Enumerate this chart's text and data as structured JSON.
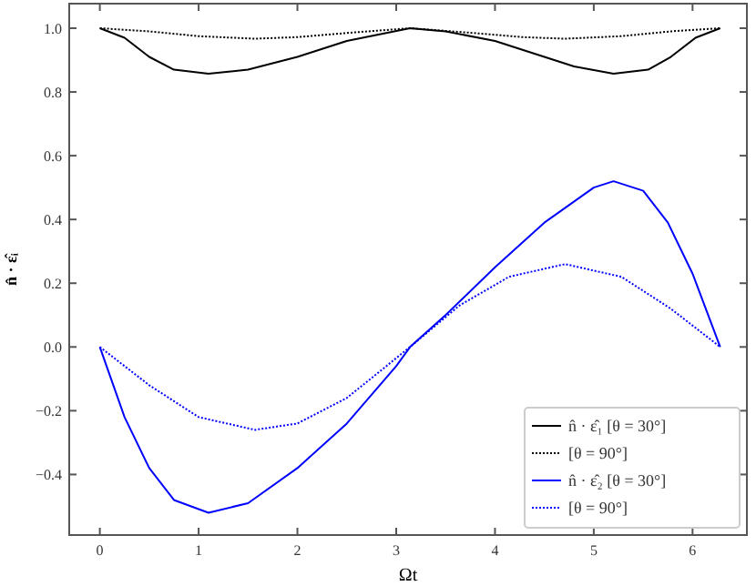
{
  "chart_data": {
    "type": "line",
    "xlabel": "Ωt",
    "ylabel": "n̂ · ε̂ᵢ",
    "xlim": [
      -0.31,
      6.55
    ],
    "ylim": [
      -0.59,
      1.077
    ],
    "xticks": [
      0,
      1,
      2,
      3,
      4,
      5,
      6
    ],
    "yticks": [
      {
        "value": -0.4,
        "label": "−0.4"
      },
      {
        "value": -0.2,
        "label": "−0.2"
      },
      {
        "value": 0,
        "label": "0.0"
      },
      0.2,
      0.4,
      0.6,
      0.8,
      {
        "value": 1,
        "label": "1.0"
      }
    ],
    "legend": "bottom right",
    "grid": false,
    "series": [
      {
        "name": "n̂ · ε̂₁ [θ = 30°]",
        "color": "#000000",
        "line_style": "solid",
        "x": [
          0,
          0.25,
          0.5,
          0.75,
          1.1,
          1.5,
          2,
          2.5,
          3.14,
          3.5,
          4,
          4.5,
          4.8,
          5.2,
          5.55,
          5.78,
          6.03,
          6.28
        ],
        "values": [
          1,
          0.97,
          0.91,
          0.87,
          0.857,
          0.87,
          0.91,
          0.96,
          1,
          0.99,
          0.96,
          0.91,
          0.88,
          0.857,
          0.87,
          0.91,
          0.97,
          1
        ]
      },
      {
        "name": "[θ = 90°]",
        "color": "#000000",
        "line_style": "dotted",
        "x": [
          0,
          0.5,
          1,
          1.57,
          2,
          2.5,
          3.14,
          3.78,
          4.28,
          4.71,
          5.28,
          5.78,
          6.28
        ],
        "values": [
          1,
          0.99,
          0.975,
          0.967,
          0.972,
          0.985,
          1,
          0.985,
          0.972,
          0.967,
          0.975,
          0.99,
          1
        ]
      },
      {
        "name": "n̂ · ε̂₂ [θ = 30°]",
        "color": "#0000ff",
        "line_style": "solid",
        "x": [
          0,
          0.25,
          0.5,
          0.75,
          1.1,
          1.5,
          2,
          2.5,
          3,
          3.14,
          3.5,
          4,
          4.5,
          5,
          5.2,
          5.5,
          5.75,
          6,
          6.28
        ],
        "values": [
          0,
          -0.22,
          -0.38,
          -0.48,
          -0.52,
          -0.49,
          -0.38,
          -0.24,
          -0.06,
          0,
          0.1,
          0.25,
          0.39,
          0.5,
          0.52,
          0.49,
          0.39,
          0.23,
          0
        ]
      },
      {
        "name": "[θ = 90°]",
        "color": "#0000ff",
        "line_style": "dotted",
        "x": [
          0,
          0.5,
          1,
          1.57,
          2,
          2.5,
          3.14,
          3.64,
          4.14,
          4.71,
          5.28,
          5.78,
          6.28
        ],
        "values": [
          0,
          -0.12,
          -0.22,
          -0.26,
          -0.24,
          -0.16,
          0,
          0.13,
          0.22,
          0.26,
          0.22,
          0.12,
          0
        ]
      }
    ]
  }
}
